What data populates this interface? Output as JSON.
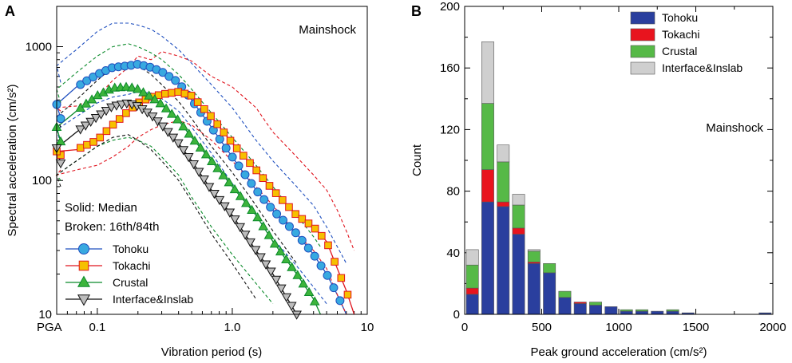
{
  "chart_data": [
    {
      "panel": "A",
      "type": "line",
      "annotation": "Mainshock",
      "xlabel": "Vibration period (s)",
      "ylabel": "Spectral acceleration (cm/s²)",
      "x_scale": "log",
      "y_scale": "log",
      "xlim": [
        0.05,
        10
      ],
      "ylim": [
        10,
        2000
      ],
      "x_tick_labels": [
        "PGA",
        "0.1",
        "1.0",
        "10"
      ],
      "y_tick_labels": [
        "10",
        "100",
        "1000"
      ],
      "note_lines": [
        "Solid: Median",
        "Broken: 16th/84th"
      ],
      "series": [
        {
          "name": "Tohoku",
          "color": "#1f4fbf",
          "fill": "#38a9e0",
          "marker": "circle",
          "pga": {
            "median": 290,
            "p16": 190,
            "p84": 540
          },
          "x": [
            0.05,
            0.07,
            0.1,
            0.13,
            0.17,
            0.2,
            0.25,
            0.3,
            0.4,
            0.5,
            0.7,
            1.0,
            1.5,
            2.0,
            3.0,
            4.0,
            5.0,
            6.0,
            7.0
          ],
          "median": [
            370,
            500,
            620,
            700,
            720,
            740,
            700,
            650,
            540,
            400,
            250,
            150,
            85,
            60,
            40,
            28,
            20,
            14,
            10
          ],
          "p16": [
            240,
            300,
            380,
            420,
            440,
            460,
            450,
            410,
            330,
            250,
            160,
            95,
            55,
            37,
            23,
            16,
            12,
            9,
            7
          ],
          "p84": [
            720,
            950,
            1300,
            1500,
            1500,
            1450,
            1350,
            1200,
            950,
            750,
            520,
            350,
            200,
            140,
            90,
            65,
            45,
            32,
            24
          ]
        },
        {
          "name": "Tokachi",
          "color": "#e0141e",
          "fill": "#f6c000",
          "marker": "square",
          "pga": {
            "median": 155,
            "p16": 120,
            "p84": 330
          },
          "x": [
            0.05,
            0.07,
            0.1,
            0.13,
            0.17,
            0.2,
            0.25,
            0.3,
            0.4,
            0.5,
            0.7,
            1.0,
            1.5,
            2.0,
            3.0,
            4.0,
            5.0,
            6.0,
            7.0,
            8.0
          ],
          "median": [
            165,
            170,
            200,
            260,
            330,
            380,
            420,
            440,
            460,
            430,
            300,
            190,
            120,
            85,
            55,
            45,
            35,
            22,
            15,
            10
          ],
          "p16": [
            110,
            120,
            130,
            150,
            180,
            210,
            240,
            260,
            280,
            260,
            200,
            140,
            90,
            65,
            40,
            30,
            22,
            14,
            10,
            7
          ],
          "p84": [
            350,
            360,
            420,
            560,
            700,
            850,
            800,
            920,
            850,
            780,
            600,
            500,
            350,
            230,
            150,
            110,
            85,
            60,
            42,
            30
          ]
        },
        {
          "name": "Crustal",
          "color": "#0a8a2a",
          "fill": "#3cb43c",
          "marker": "triangle-up",
          "pga": {
            "median": 195,
            "p16": 100,
            "p84": 380
          },
          "x": [
            0.05,
            0.07,
            0.1,
            0.13,
            0.17,
            0.2,
            0.25,
            0.3,
            0.4,
            0.5,
            0.7,
            1.0,
            1.5,
            2.0,
            3.0,
            4.0,
            4.5
          ],
          "median": [
            250,
            330,
            430,
            490,
            500,
            480,
            420,
            370,
            280,
            210,
            140,
            90,
            55,
            35,
            20,
            13,
            10
          ],
          "p16": [
            110,
            140,
            180,
            200,
            210,
            200,
            180,
            150,
            110,
            75,
            45,
            28,
            17,
            12,
            8,
            6,
            5
          ],
          "p84": [
            480,
            640,
            850,
            1000,
            1050,
            1000,
            900,
            800,
            620,
            480,
            320,
            210,
            130,
            90,
            55,
            38,
            32
          ]
        },
        {
          "name": "Interface&Inslab",
          "color": "#111111",
          "fill": "#bdbdbd",
          "marker": "triangle-down",
          "pga": {
            "median": 135,
            "p16": 90,
            "p84": 250
          },
          "x": [
            0.05,
            0.07,
            0.1,
            0.13,
            0.17,
            0.2,
            0.25,
            0.3,
            0.4,
            0.5,
            0.7,
            1.0,
            1.5,
            2.0,
            3.0
          ],
          "median": [
            175,
            230,
            300,
            360,
            380,
            360,
            310,
            260,
            190,
            140,
            85,
            55,
            30,
            20,
            10
          ],
          "p16": [
            110,
            140,
            180,
            210,
            220,
            200,
            170,
            140,
            100,
            70,
            40,
            24,
            13,
            9,
            5
          ],
          "p84": [
            300,
            400,
            560,
            700,
            760,
            720,
            620,
            520,
            390,
            290,
            180,
            115,
            65,
            42,
            24
          ]
        }
      ]
    },
    {
      "panel": "B",
      "type": "bar",
      "stacked": true,
      "annotation": "Mainshock",
      "xlabel": "Peak ground acceleration (cm/s²)",
      "ylabel": "Count",
      "xlim": [
        0,
        2000
      ],
      "ylim": [
        0,
        200
      ],
      "x_tick_labels": [
        "0",
        "500",
        "1000",
        "1500",
        "2000"
      ],
      "y_tick_labels": [
        "0",
        "40",
        "80",
        "120",
        "160",
        "200"
      ],
      "bin_width": 100,
      "categories": [
        50,
        150,
        250,
        350,
        450,
        550,
        650,
        750,
        850,
        950,
        1050,
        1150,
        1250,
        1350,
        1450,
        1550,
        1650,
        1750,
        1850,
        1950
      ],
      "series": [
        {
          "name": "Tohoku",
          "color": "#2a3f9e",
          "values": [
            13,
            73,
            70,
            52,
            33,
            27,
            11,
            7,
            6,
            5,
            2,
            2,
            2,
            2,
            1,
            0,
            0,
            0,
            0,
            1
          ]
        },
        {
          "name": "Tokachi",
          "color": "#e8141e",
          "values": [
            4,
            21,
            3,
            4,
            1,
            0,
            0,
            1,
            0,
            0,
            0,
            0,
            0,
            0,
            0,
            0,
            0,
            0,
            0,
            0
          ]
        },
        {
          "name": "Crustal",
          "color": "#56b947",
          "values": [
            15,
            43,
            26,
            15,
            7,
            6,
            4,
            0,
            2,
            0,
            1,
            1,
            0,
            1,
            0,
            0,
            0,
            0,
            0,
            0
          ]
        },
        {
          "name": "Interface&Inslab",
          "color": "#cfcfcf",
          "values": [
            10,
            40,
            11,
            7,
            1,
            0,
            0,
            0,
            0,
            0,
            0,
            0,
            0,
            0,
            0,
            0,
            0,
            0,
            0,
            0
          ]
        }
      ]
    }
  ]
}
